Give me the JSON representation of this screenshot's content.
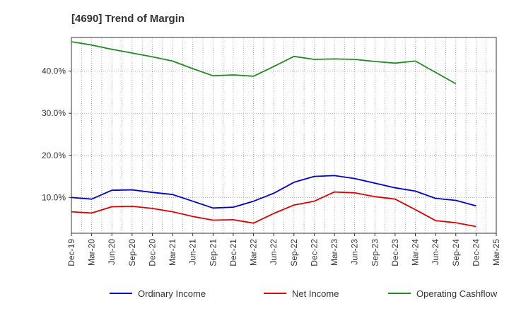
{
  "chart_data": {
    "type": "line",
    "title": "[4690]  Trend of Margin",
    "xlabel": "",
    "ylabel": "",
    "x_ticks": [
      "Dec-19",
      "Mar-20",
      "Jun-20",
      "Sep-20",
      "Dec-20",
      "Mar-21",
      "Jun-21",
      "Sep-21",
      "Dec-21",
      "Mar-22",
      "Jun-22",
      "Sep-22",
      "Dec-22",
      "Mar-23",
      "Jun-23",
      "Sep-23",
      "Dec-23",
      "Mar-24",
      "Jun-24",
      "Sep-24",
      "Dec-24",
      "Mar-25"
    ],
    "ylim": [
      1.5,
      48.0
    ],
    "y_ticks": [
      10,
      20,
      30,
      40
    ],
    "y_tick_labels": [
      "10.0%",
      "20.0%",
      "30.0%",
      "40.0%"
    ],
    "grid": true,
    "legend_position": "bottom",
    "series": [
      {
        "name": "Ordinary Income",
        "color": "#0000cc",
        "values": [
          10.0,
          9.6,
          11.7,
          11.8,
          11.2,
          10.7,
          9.1,
          7.5,
          7.7,
          9.1,
          11.0,
          13.6,
          15.0,
          15.2,
          14.5,
          13.4,
          12.3,
          11.5,
          9.8,
          9.3,
          8.0,
          null
        ]
      },
      {
        "name": "Net Income",
        "color": "#dd0000",
        "values": [
          6.6,
          6.3,
          7.8,
          7.9,
          7.4,
          6.6,
          5.5,
          4.6,
          4.7,
          3.9,
          6.2,
          8.2,
          9.1,
          11.3,
          11.1,
          10.2,
          9.6,
          7.1,
          4.5,
          4.0,
          3.1,
          null
        ]
      },
      {
        "name": "Operating Cashflow",
        "color": "#228b22",
        "values": [
          47.0,
          46.2,
          45.2,
          44.3,
          43.4,
          42.4,
          40.6,
          38.9,
          39.1,
          38.8,
          41.1,
          43.5,
          42.8,
          42.9,
          42.8,
          42.3,
          41.9,
          42.4,
          39.7,
          37.0,
          null,
          null
        ]
      }
    ]
  }
}
